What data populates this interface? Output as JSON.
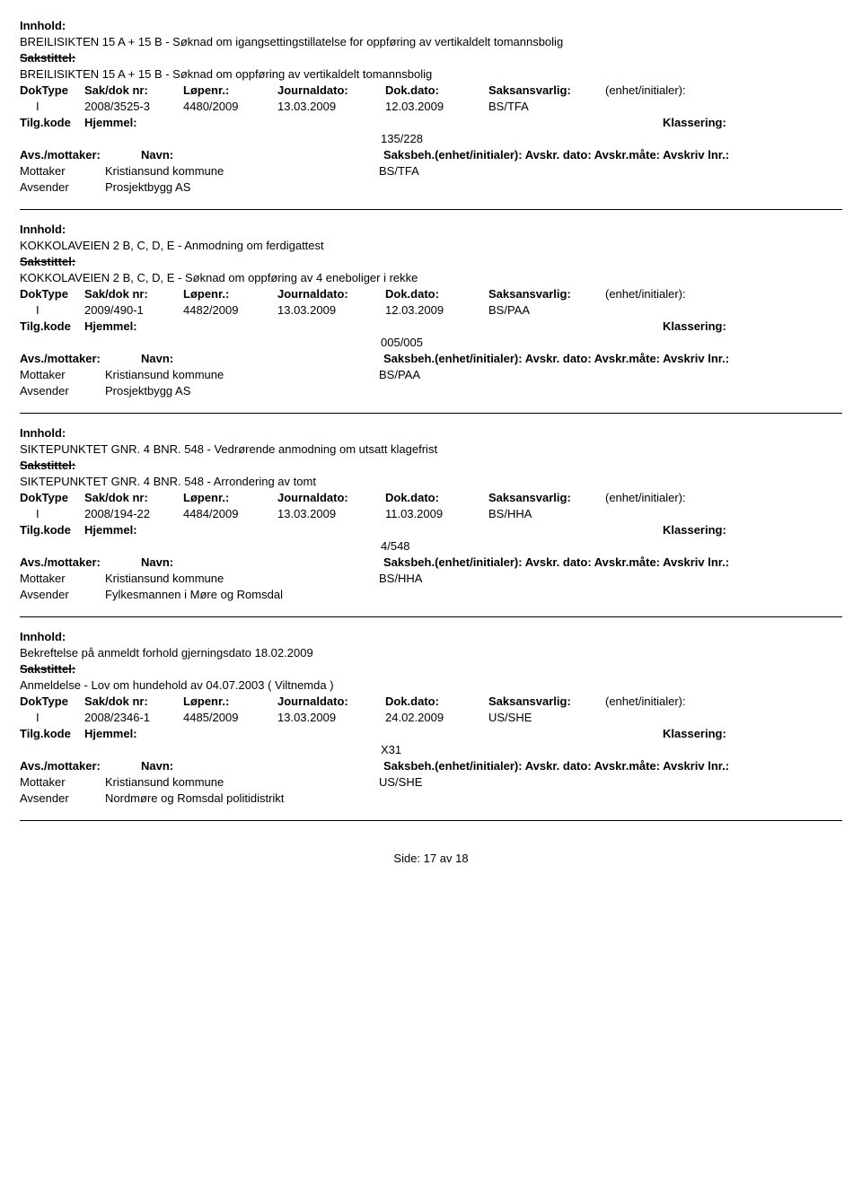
{
  "labels": {
    "innhold": "Innhold:",
    "sakstittel": "Sakstittel:",
    "doktype": "DokType",
    "saknr": "Sak/dok nr:",
    "lopenr": "Løpenr.:",
    "journaldato": "Journaldato:",
    "dokdato": "Dok.dato:",
    "saksansvarlig": "Saksansvarlig:",
    "enhet": "(enhet/initialer):",
    "tilgkode": "Tilg.kode",
    "hjemmel": "Hjemmel:",
    "klassering": "Klassering:",
    "avs_mottaker": "Avs./mottaker:",
    "navn": "Navn:",
    "saksbeh_line": "Saksbeh.(enhet/initialer): Avskr. dato: Avskr.måte: Avskriv lnr.:",
    "mottaker": "Mottaker",
    "avsender": "Avsender",
    "side": "Side:",
    "av": "av"
  },
  "page": {
    "current": "17",
    "total": "18"
  },
  "records": [
    {
      "innhold": "BREILISIKTEN 15 A + 15 B - Søknad om igangsettingstillatelse for oppføring av vertikaldelt tomannsbolig",
      "sakstittel": "BREILISIKTEN 15 A + 15 B - Søknad om oppføring av vertikaldelt tomannsbolig",
      "doktype": "I",
      "saknr": "2008/3525-3",
      "lopenr": "4480/2009",
      "jdato": "13.03.2009",
      "dokdato": "12.03.2009",
      "saksansv": "BS/TFA",
      "klassering": "135/228",
      "mottaker_navn": "Kristiansund kommune",
      "mottaker_saksbeh": "BS/TFA",
      "avsender_navn": "Prosjektbygg AS"
    },
    {
      "innhold": "KOKKOLAVEIEN 2 B, C, D, E - Anmodning om ferdigattest",
      "sakstittel": "KOKKOLAVEIEN 2 B, C, D, E - Søknad om oppføring av 4 eneboliger i rekke",
      "doktype": "I",
      "saknr": "2009/490-1",
      "lopenr": "4482/2009",
      "jdato": "13.03.2009",
      "dokdato": "12.03.2009",
      "saksansv": "BS/PAA",
      "klassering": "005/005",
      "mottaker_navn": "Kristiansund kommune",
      "mottaker_saksbeh": "BS/PAA",
      "avsender_navn": "Prosjektbygg AS"
    },
    {
      "innhold": "SIKTEPUNKTET GNR. 4 BNR. 548 - Vedrørende anmodning om utsatt klagefrist",
      "sakstittel": "SIKTEPUNKTET GNR. 4 BNR. 548 - Arrondering av tomt",
      "doktype": "I",
      "saknr": "2008/194-22",
      "lopenr": "4484/2009",
      "jdato": "13.03.2009",
      "dokdato": "11.03.2009",
      "saksansv": "BS/HHA",
      "klassering": "4/548",
      "mottaker_navn": "Kristiansund kommune",
      "mottaker_saksbeh": "BS/HHA",
      "avsender_navn": "Fylkesmannen i Møre og Romsdal"
    },
    {
      "innhold": "Bekreftelse på anmeldt forhold gjerningsdato 18.02.2009",
      "sakstittel": "Anmeldelse - Lov om hundehold av 04.07.2003 ( Viltnemda )",
      "doktype": "I",
      "saknr": "2008/2346-1",
      "lopenr": "4485/2009",
      "jdato": "13.03.2009",
      "dokdato": "24.02.2009",
      "saksansv": "US/SHE",
      "klassering": "X31",
      "mottaker_navn": "Kristiansund kommune",
      "mottaker_saksbeh": "US/SHE",
      "avsender_navn": "Nordmøre og Romsdal politidistrikt"
    }
  ]
}
